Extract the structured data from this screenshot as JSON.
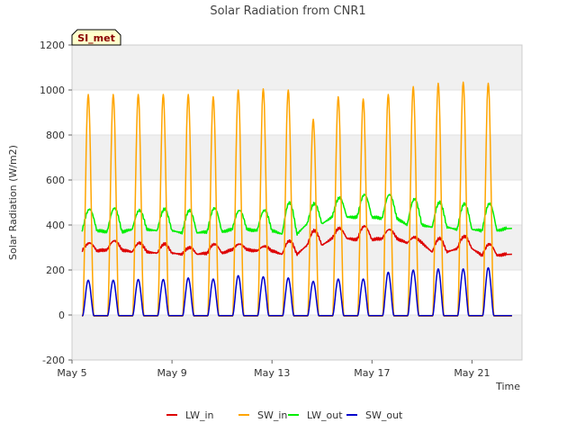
{
  "chart_data": {
    "type": "line",
    "title": "Solar Radiation from CNR1",
    "ylabel": "Solar Radiation (W/m2)",
    "xlabel": "Time",
    "badge": "SI_met",
    "ylim": [
      -200,
      1200
    ],
    "yticks": [
      -200,
      0,
      200,
      400,
      600,
      800,
      1000,
      1200
    ],
    "xlim": [
      5.0,
      23.0
    ],
    "xticks": [
      {
        "value": 5,
        "label": "May 5"
      },
      {
        "value": 9,
        "label": "May 9"
      },
      {
        "value": 13,
        "label": "May 13"
      },
      {
        "value": 17,
        "label": "May 17"
      },
      {
        "value": 21,
        "label": "May 21"
      }
    ],
    "grid_bands": true,
    "legend_position": "bottom",
    "day_starts": [
      5.4,
      6.4,
      7.4,
      8.4,
      9.4,
      10.4,
      11.4,
      12.4,
      13.4,
      14.4,
      15.4,
      16.4,
      17.4,
      18.4,
      19.4,
      20.4,
      21.4
    ],
    "x_end": 22.6,
    "series": [
      {
        "name": "LW_in",
        "color": "#dd0000",
        "daily_night": [
          285,
          290,
          280,
          275,
          270,
          275,
          290,
          285,
          270,
          310,
          340,
          335,
          340,
          320,
          280,
          295,
          265
        ],
        "daily_peak": [
          320,
          330,
          320,
          315,
          300,
          315,
          315,
          305,
          330,
          375,
          385,
          395,
          380,
          345,
          340,
          350,
          315
        ],
        "end_value": 270
      },
      {
        "name": "SW_in",
        "color": "#ffa500",
        "daily_night": [
          -5,
          -5,
          -5,
          -5,
          -5,
          -5,
          -5,
          -5,
          -5,
          -5,
          -5,
          -5,
          -5,
          -5,
          -5,
          -5,
          -5
        ],
        "daily_peak": [
          980,
          980,
          980,
          980,
          980,
          970,
          1000,
          1005,
          1000,
          870,
          970,
          960,
          980,
          1015,
          1030,
          1035,
          1030
        ],
        "end_value": -5
      },
      {
        "name": "LW_out",
        "color": "#00ee00",
        "daily_night": [
          375,
          370,
          380,
          375,
          365,
          370,
          380,
          375,
          360,
          405,
          435,
          435,
          430,
          400,
          390,
          380,
          375
        ],
        "daily_peak": [
          470,
          475,
          465,
          470,
          465,
          475,
          465,
          465,
          500,
          495,
          520,
          535,
          535,
          515,
          500,
          495,
          495
        ],
        "end_value": 385
      },
      {
        "name": "SW_out",
        "color": "#0000cc",
        "daily_night": [
          -3,
          -3,
          -3,
          -3,
          -3,
          -3,
          -3,
          -3,
          -3,
          -3,
          -3,
          -3,
          -3,
          -3,
          -3,
          -3,
          -3
        ],
        "daily_peak": [
          155,
          155,
          158,
          158,
          165,
          160,
          175,
          170,
          165,
          150,
          160,
          160,
          190,
          200,
          205,
          205,
          210
        ],
        "end_value": -3
      }
    ]
  }
}
